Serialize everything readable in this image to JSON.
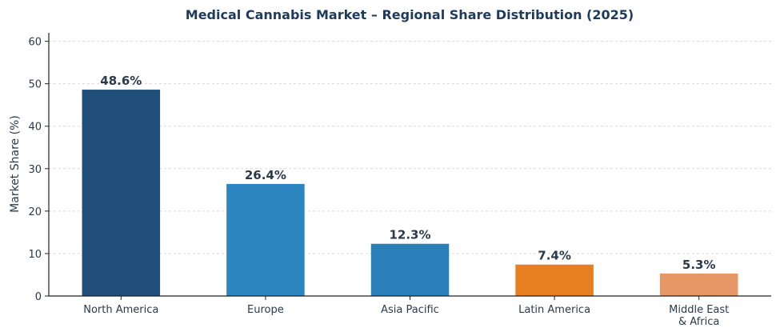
{
  "chart_data": {
    "type": "bar",
    "title": "Medical Cannabis Market – Regional Share Distribution (2025)",
    "xlabel": "",
    "ylabel": "Market Share (%)",
    "ylim": [
      0,
      62
    ],
    "yticks": [
      0,
      10,
      20,
      30,
      40,
      50,
      60
    ],
    "grid": true,
    "categories": [
      "North America",
      "Europe",
      "Asia Pacific",
      "Latin America",
      "Middle East\n& Africa"
    ],
    "values": [
      48.6,
      26.4,
      12.3,
      7.4,
      5.3
    ],
    "data_labels": [
      "48.6%",
      "26.4%",
      "12.3%",
      "7.4%",
      "5.3%"
    ],
    "colors": [
      "#1f4e79",
      "#2e86c1",
      "#2980b9",
      "#e67e22",
      "#e59866"
    ]
  }
}
